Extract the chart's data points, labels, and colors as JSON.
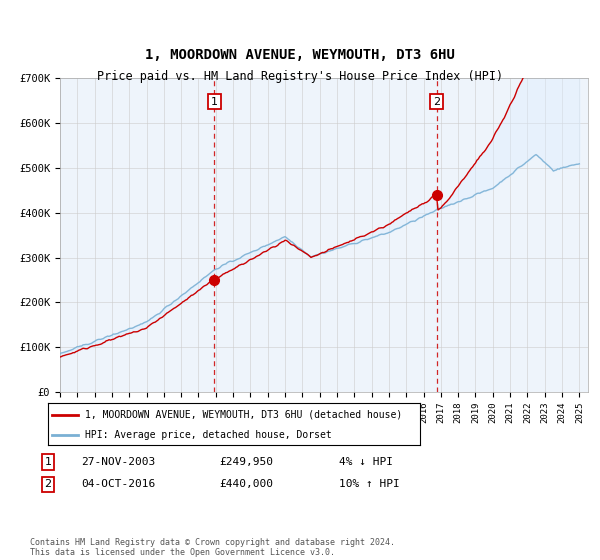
{
  "title": "1, MOORDOWN AVENUE, WEYMOUTH, DT3 6HU",
  "subtitle": "Price paid vs. HM Land Registry's House Price Index (HPI)",
  "ylim": [
    0,
    700000
  ],
  "xlim_start": 1995.0,
  "xlim_end": 2025.5,
  "sale1": {
    "date": "27-NOV-2003",
    "price": 249950,
    "label": "1",
    "pct": "4%",
    "dir": "↓"
  },
  "sale2": {
    "date": "04-OCT-2016",
    "price": 440000,
    "label": "2",
    "pct": "10%",
    "dir": "↑"
  },
  "line1_label": "1, MOORDOWN AVENUE, WEYMOUTH, DT3 6HU (detached house)",
  "line2_label": "HPI: Average price, detached house, Dorset",
  "line1_color": "#cc0000",
  "line2_color": "#7ab0d4",
  "shade_color": "#ddeeff",
  "vline_color": "#cc0000",
  "annotation_box_color": "#cc0000",
  "footnote": "Contains HM Land Registry data © Crown copyright and database right 2024.\nThis data is licensed under the Open Government Licence v3.0.",
  "background_color": "#eef4fb",
  "grid_color": "#cccccc",
  "sale1_year": 2003.917,
  "sale2_year": 2016.75
}
